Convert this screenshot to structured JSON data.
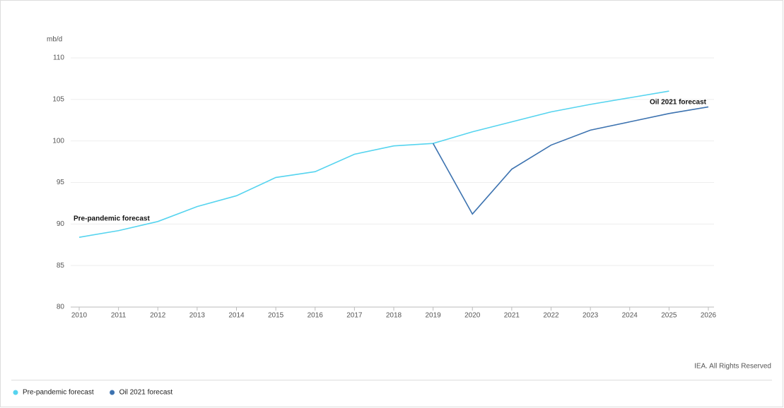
{
  "chart_data": {
    "type": "line",
    "y_label": "mb/d",
    "x": [
      2010,
      2011,
      2012,
      2013,
      2014,
      2015,
      2016,
      2017,
      2018,
      2019,
      2020,
      2021,
      2022,
      2023,
      2024,
      2025,
      2026
    ],
    "series": [
      {
        "name": "Pre-pandemic forecast",
        "color": "#56d4ef",
        "values": [
          88.4,
          89.2,
          90.3,
          92.1,
          93.4,
          95.6,
          96.3,
          98.4,
          99.4,
          99.7,
          101.1,
          102.3,
          103.5,
          104.4,
          105.2,
          106.0,
          null
        ]
      },
      {
        "name": "Oil 2021 forecast",
        "color": "#3d73b0",
        "values": [
          null,
          null,
          null,
          null,
          null,
          null,
          null,
          null,
          null,
          99.7,
          91.2,
          96.6,
          99.5,
          101.3,
          102.3,
          103.3,
          104.1
        ]
      }
    ],
    "xlim": [
      2010,
      2026
    ],
    "xticks": [
      2010,
      2011,
      2012,
      2013,
      2014,
      2015,
      2016,
      2017,
      2018,
      2019,
      2020,
      2021,
      2022,
      2023,
      2024,
      2025,
      2026
    ],
    "ylim": [
      80,
      110
    ],
    "yticks": [
      80,
      85,
      90,
      95,
      100,
      105,
      110
    ],
    "grid": true,
    "source": "IEA. All Rights Reserved"
  }
}
